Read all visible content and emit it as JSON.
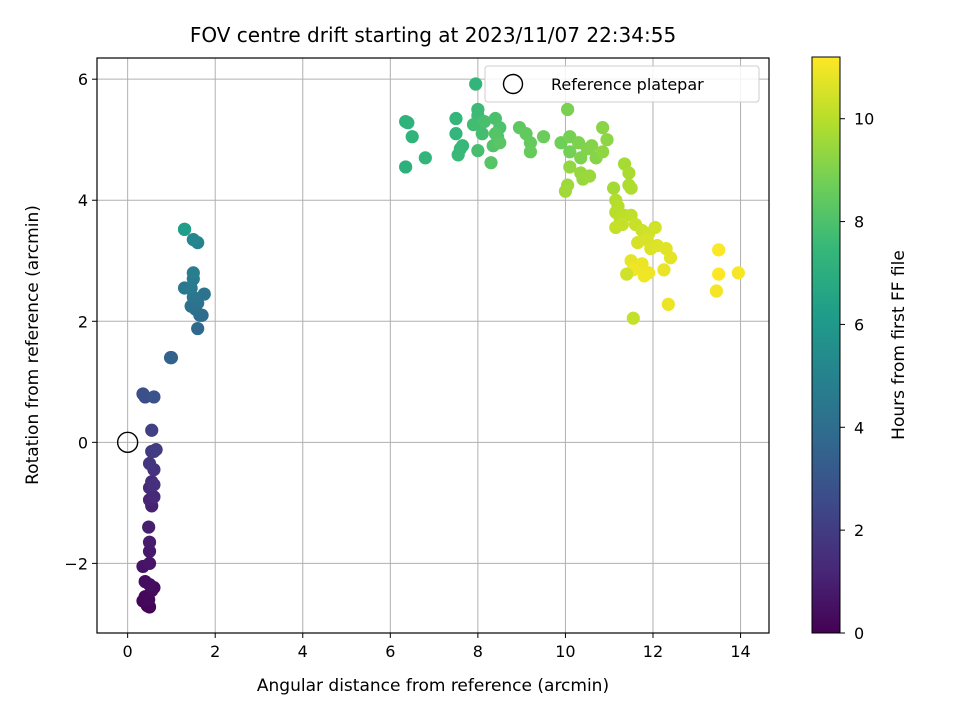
{
  "chart_data": {
    "type": "scatter",
    "title": "FOV centre drift starting at 2023/11/07 22:34:55",
    "xlabel": "Angular distance from reference (arcmin)",
    "ylabel": "Rotation from reference (arcmin)",
    "xlim": [
      -0.7,
      14.65
    ],
    "ylim": [
      -3.15,
      6.35
    ],
    "xticks": [
      0,
      2,
      4,
      6,
      8,
      10,
      12,
      14
    ],
    "xtick_labels": [
      "0",
      "2",
      "4",
      "6",
      "8",
      "10",
      "12",
      "14"
    ],
    "yticks": [
      -2,
      0,
      2,
      4,
      6
    ],
    "ytick_labels": [
      "−2",
      "0",
      "2",
      "4",
      "6"
    ],
    "grid": true,
    "legend": {
      "location": "upper right",
      "entries": [
        "Reference platepar"
      ]
    },
    "reference_point": {
      "x": 0,
      "y": 0,
      "label": "Reference platepar"
    },
    "colorbar": {
      "label": "Hours from first FF file",
      "colormap": "viridis",
      "range": [
        0,
        11.2
      ],
      "ticks": [
        0,
        2,
        4,
        6,
        8,
        10
      ],
      "tick_labels": [
        "0",
        "2",
        "4",
        "6",
        "8",
        "10"
      ],
      "colors": [
        "#440154",
        "#482878",
        "#3e4989",
        "#31688e",
        "#26828e",
        "#1f9e89",
        "#35b779",
        "#6ece58",
        "#b5de2b",
        "#fde725"
      ]
    },
    "points": [
      [
        0.45,
        -2.7,
        0.05
      ],
      [
        0.5,
        -2.72,
        0.1
      ],
      [
        0.35,
        -2.62,
        0.15
      ],
      [
        0.4,
        -2.55,
        0.2
      ],
      [
        0.48,
        -2.6,
        0.25
      ],
      [
        0.55,
        -2.45,
        0.3
      ],
      [
        0.6,
        -2.4,
        0.35
      ],
      [
        0.4,
        -2.3,
        0.4
      ],
      [
        0.5,
        -2.35,
        0.45
      ],
      [
        0.35,
        -2.05,
        0.55
      ],
      [
        0.5,
        -2.0,
        0.65
      ],
      [
        0.5,
        -1.8,
        0.75
      ],
      [
        0.5,
        -1.65,
        0.85
      ],
      [
        0.48,
        -1.4,
        0.95
      ],
      [
        0.55,
        -1.05,
        1.05
      ],
      [
        0.5,
        -0.95,
        1.15
      ],
      [
        0.6,
        -0.9,
        1.25
      ],
      [
        0.5,
        -0.75,
        1.35
      ],
      [
        0.55,
        -0.65,
        1.45
      ],
      [
        0.6,
        -0.7,
        1.55
      ],
      [
        0.6,
        -0.45,
        1.65
      ],
      [
        0.5,
        -0.35,
        1.75
      ],
      [
        0.55,
        -0.15,
        1.85
      ],
      [
        0.6,
        -0.15,
        1.95
      ],
      [
        0.65,
        -0.12,
        2.05
      ],
      [
        0.55,
        0.2,
        2.15
      ],
      [
        0.4,
        0.75,
        2.6
      ],
      [
        0.35,
        0.8,
        2.75
      ],
      [
        0.6,
        0.75,
        2.9
      ],
      [
        1.0,
        1.4,
        3.35
      ],
      [
        0.98,
        1.4,
        3.5
      ],
      [
        1.6,
        1.88,
        3.75
      ],
      [
        1.65,
        2.1,
        3.85
      ],
      [
        1.7,
        2.1,
        3.95
      ],
      [
        1.55,
        2.2,
        4.05
      ],
      [
        1.45,
        2.25,
        4.15
      ],
      [
        1.6,
        2.3,
        4.2
      ],
      [
        1.75,
        2.45,
        4.3
      ],
      [
        1.5,
        2.4,
        4.4
      ],
      [
        1.3,
        2.55,
        4.5
      ],
      [
        1.45,
        2.55,
        4.55
      ],
      [
        1.5,
        2.7,
        4.65
      ],
      [
        1.5,
        2.8,
        4.75
      ],
      [
        1.6,
        3.3,
        5.0
      ],
      [
        1.5,
        3.35,
        5.15
      ],
      [
        1.3,
        3.52,
        5.5
      ],
      [
        1.3,
        3.52,
        6.2
      ],
      [
        6.35,
        4.55,
        7.05
      ],
      [
        6.35,
        5.3,
        7.15
      ],
      [
        6.4,
        5.28,
        7.2
      ],
      [
        6.5,
        5.05,
        7.25
      ],
      [
        6.8,
        4.7,
        7.3
      ],
      [
        7.5,
        5.1,
        7.35
      ],
      [
        7.5,
        5.35,
        7.4
      ],
      [
        7.6,
        4.85,
        7.45
      ],
      [
        7.65,
        4.9,
        7.5
      ],
      [
        7.55,
        4.75,
        7.55
      ],
      [
        7.95,
        5.92,
        7.3
      ],
      [
        8.0,
        5.5,
        7.6
      ],
      [
        8.0,
        5.4,
        7.65
      ],
      [
        8.05,
        5.25,
        7.7
      ],
      [
        7.9,
        5.25,
        7.75
      ],
      [
        8.1,
        5.1,
        7.8
      ],
      [
        8.0,
        4.82,
        7.85
      ],
      [
        8.15,
        5.3,
        7.9
      ],
      [
        8.4,
        5.35,
        7.95
      ],
      [
        8.5,
        5.2,
        8.0
      ],
      [
        8.45,
        5.05,
        8.05
      ],
      [
        8.35,
        4.9,
        8.1
      ],
      [
        8.4,
        5.1,
        8.15
      ],
      [
        8.3,
        4.62,
        8.2
      ],
      [
        8.5,
        4.95,
        8.25
      ],
      [
        8.95,
        5.2,
        8.35
      ],
      [
        9.1,
        5.1,
        8.45
      ],
      [
        9.2,
        4.95,
        8.5
      ],
      [
        9.2,
        4.8,
        8.55
      ],
      [
        9.5,
        5.05,
        8.6
      ],
      [
        9.9,
        4.95,
        8.7
      ],
      [
        10.1,
        4.8,
        8.8
      ],
      [
        10.1,
        5.05,
        8.85
      ],
      [
        10.05,
        5.5,
        8.9
      ],
      [
        10.3,
        4.95,
        8.95
      ],
      [
        10.35,
        4.7,
        9.0
      ],
      [
        10.5,
        4.85,
        9.05
      ],
      [
        10.6,
        4.9,
        9.1
      ],
      [
        10.7,
        4.7,
        9.15
      ],
      [
        10.85,
        5.2,
        9.2
      ],
      [
        10.95,
        5.0,
        9.25
      ],
      [
        10.85,
        4.8,
        9.3
      ],
      [
        10.1,
        4.55,
        9.35
      ],
      [
        10.35,
        4.45,
        9.4
      ],
      [
        10.4,
        4.35,
        9.45
      ],
      [
        10.55,
        4.4,
        9.5
      ],
      [
        10.05,
        4.25,
        9.55
      ],
      [
        10.0,
        4.15,
        9.6
      ],
      [
        11.1,
        4.2,
        9.65
      ],
      [
        11.35,
        4.6,
        9.7
      ],
      [
        11.45,
        4.45,
        9.75
      ],
      [
        11.45,
        4.25,
        9.8
      ],
      [
        11.5,
        4.2,
        9.85
      ],
      [
        11.15,
        4.0,
        9.9
      ],
      [
        11.2,
        3.9,
        9.95
      ],
      [
        11.15,
        3.8,
        10.0
      ],
      [
        11.25,
        3.7,
        10.05
      ],
      [
        11.35,
        3.75,
        10.1
      ],
      [
        11.5,
        3.75,
        10.15
      ],
      [
        11.3,
        3.6,
        10.2
      ],
      [
        11.15,
        3.55,
        10.25
      ],
      [
        11.6,
        3.6,
        10.3
      ],
      [
        11.75,
        3.5,
        10.35
      ],
      [
        11.9,
        3.45,
        10.4
      ],
      [
        12.05,
        3.55,
        10.45
      ],
      [
        11.65,
        3.3,
        10.5
      ],
      [
        11.85,
        3.35,
        10.55
      ],
      [
        11.95,
        3.2,
        10.6
      ],
      [
        12.1,
        3.25,
        10.65
      ],
      [
        12.3,
        3.2,
        10.7
      ],
      [
        12.4,
        3.05,
        10.75
      ],
      [
        11.5,
        3.0,
        10.8
      ],
      [
        11.6,
        2.9,
        10.85
      ],
      [
        11.75,
        2.95,
        10.9
      ],
      [
        11.9,
        2.8,
        10.95
      ],
      [
        11.55,
        2.85,
        11.0
      ],
      [
        11.8,
        2.75,
        11.0
      ],
      [
        11.4,
        2.78,
        10.4
      ],
      [
        12.25,
        2.85,
        10.85
      ],
      [
        12.35,
        2.28,
        10.9
      ],
      [
        11.55,
        2.05,
        10.2
      ],
      [
        13.5,
        3.18,
        11.15
      ],
      [
        13.5,
        2.78,
        11.2
      ],
      [
        13.95,
        2.8,
        11.1
      ],
      [
        13.45,
        2.5,
        11.05
      ]
    ]
  }
}
